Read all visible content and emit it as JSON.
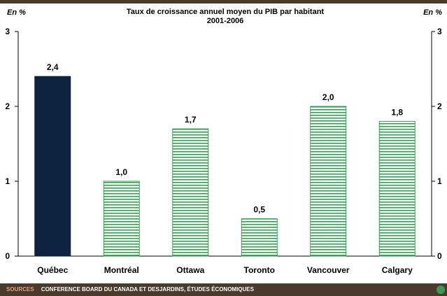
{
  "chart_data": {
    "type": "bar",
    "title": "Taux de croissance annuel moyen du PIB par habitant",
    "subtitle": "2001-2006",
    "ylabel_left": "En %",
    "ylabel_right": "En %",
    "categories": [
      "Québec",
      "Montréal",
      "Ottawa",
      "Toronto",
      "Vancouver",
      "Calgary"
    ],
    "values": [
      2.4,
      1.0,
      1.7,
      0.5,
      2.0,
      1.8
    ],
    "value_labels": [
      "2,4",
      "1,0",
      "1,7",
      "0,5",
      "2,0",
      "1,8"
    ],
    "ylim": [
      0,
      3
    ],
    "yticks": [
      0,
      1,
      2,
      3
    ],
    "ytick_labels": [
      "0",
      "1",
      "2",
      "3"
    ],
    "grid": false,
    "legend": "none",
    "colors": {
      "highlight_bar": "#0e2340",
      "striped_bar_line": "#3e9b55",
      "striped_bar_bg": "#ffffff",
      "top_rule": "#4a3a2c"
    }
  },
  "footer": {
    "sources_label": "SOURCES",
    "sources_text": "CONFERENCE BOARD DU CANADA ET DESJARDINS, ÉTUDES ÉCONOMIQUES"
  }
}
